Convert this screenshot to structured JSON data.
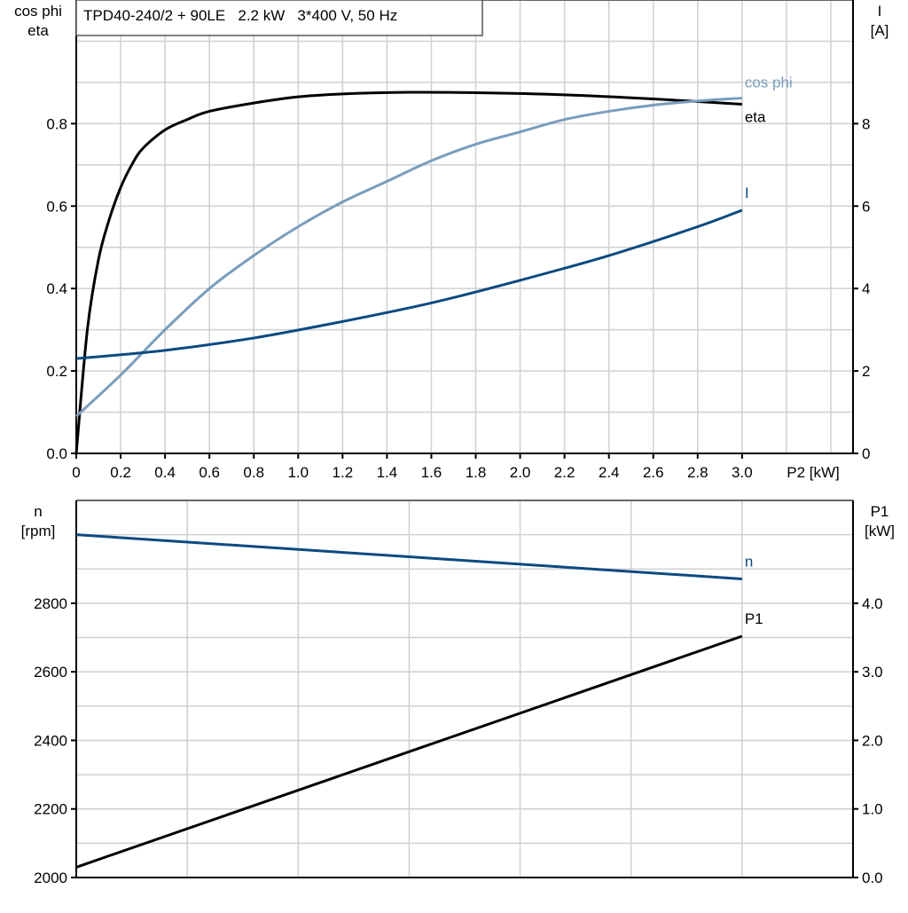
{
  "chart_data": [
    {
      "type": "line",
      "title": "TPD40-240/2 + 90LE   2.2 kW   3*400 V, 50 Hz",
      "xlabel": "P2 [kW]",
      "ylabel_left": [
        "cos phi",
        "eta"
      ],
      "ylabel_right": [
        "I",
        "[A]"
      ],
      "xlim": [
        0,
        3.5
      ],
      "ylim_left": [
        0,
        1.1
      ],
      "ylim_right": [
        0,
        11
      ],
      "xticks": [
        "0",
        "0.2",
        "0.4",
        "0.6",
        "0.8",
        "1.0",
        "1.2",
        "1.4",
        "1.6",
        "1.8",
        "2.0",
        "2.2",
        "2.4",
        "2.6",
        "2.8",
        "3.0"
      ],
      "yticks_left": [
        "0.0",
        "0.2",
        "0.4",
        "0.6",
        "0.8"
      ],
      "yticks_right": [
        "0",
        "2",
        "4",
        "6",
        "8"
      ],
      "grid": true,
      "series": [
        {
          "name": "eta",
          "axis": "left",
          "color": "#000000",
          "x": [
            0,
            0.05,
            0.1,
            0.15,
            0.2,
            0.25,
            0.3,
            0.4,
            0.5,
            0.6,
            0.8,
            1.0,
            1.2,
            1.5,
            1.8,
            2.2,
            2.6,
            3.0
          ],
          "y": [
            0,
            0.3,
            0.47,
            0.57,
            0.645,
            0.7,
            0.74,
            0.785,
            0.81,
            0.83,
            0.85,
            0.865,
            0.872,
            0.876,
            0.875,
            0.87,
            0.86,
            0.847
          ]
        },
        {
          "name": "cos phi",
          "axis": "left",
          "color": "#7a9dbd",
          "x": [
            0,
            0.2,
            0.4,
            0.6,
            0.8,
            1.0,
            1.2,
            1.4,
            1.6,
            1.8,
            2.0,
            2.2,
            2.4,
            2.6,
            2.8,
            3.0
          ],
          "y": [
            0.09,
            0.19,
            0.3,
            0.4,
            0.48,
            0.55,
            0.61,
            0.66,
            0.71,
            0.75,
            0.78,
            0.81,
            0.83,
            0.845,
            0.855,
            0.862
          ]
        },
        {
          "name": "I",
          "axis": "right",
          "color": "#0c4a80",
          "x": [
            0,
            0.4,
            0.8,
            1.2,
            1.6,
            2.0,
            2.4,
            2.8,
            3.0
          ],
          "y": [
            2.3,
            2.5,
            2.8,
            3.2,
            3.65,
            4.2,
            4.8,
            5.5,
            5.9
          ]
        }
      ]
    },
    {
      "type": "line",
      "xlim": [
        0,
        3.5
      ],
      "ylabel_left": [
        "n",
        "[rpm]"
      ],
      "ylabel_right": [
        "P1",
        "[kW]"
      ],
      "ylim_left": [
        2000,
        3100
      ],
      "ylim_right": [
        0,
        5.5
      ],
      "yticks_left": [
        "2000",
        "2200",
        "2400",
        "2600",
        "2800"
      ],
      "yticks_right": [
        "0.0",
        "1.0",
        "2.0",
        "3.0",
        "4.0"
      ],
      "grid": true,
      "series": [
        {
          "name": "n",
          "axis": "left",
          "color": "#0c4a80",
          "x": [
            0,
            3.0
          ],
          "y": [
            3000,
            2871
          ]
        },
        {
          "name": "P1",
          "axis": "right",
          "color": "#000000",
          "x": [
            0,
            3.0
          ],
          "y": [
            0.15,
            3.52
          ]
        }
      ]
    }
  ]
}
